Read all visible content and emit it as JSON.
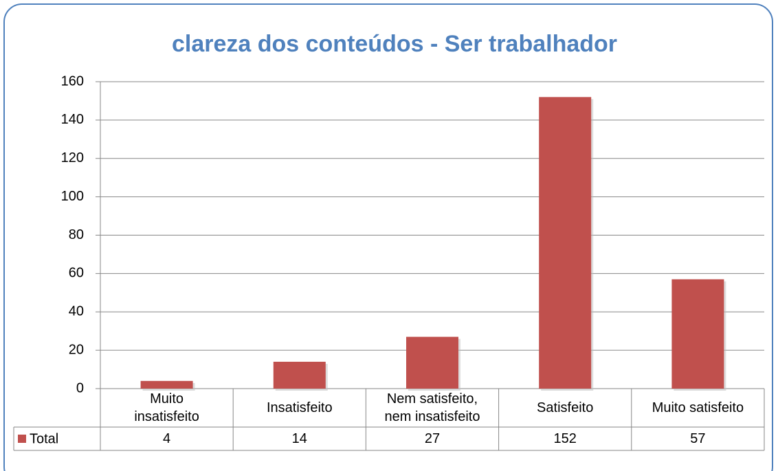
{
  "chart_data": {
    "type": "bar",
    "title": "clareza dos conteúdos - Ser trabalhador",
    "categories": [
      "Muito\ninsatisfeito",
      "Insatisfeito",
      "Nem satisfeito,\nnem insatisfeito",
      "Satisfeito",
      "Muito satisfeito"
    ],
    "series": [
      {
        "name": "Total",
        "color": "#c0504d",
        "values": [
          4,
          14,
          27,
          152,
          57
        ]
      }
    ],
    "ylim": [
      0,
      160
    ],
    "yticks": [
      0,
      20,
      40,
      60,
      80,
      100,
      120,
      140,
      160
    ],
    "grid": true
  }
}
